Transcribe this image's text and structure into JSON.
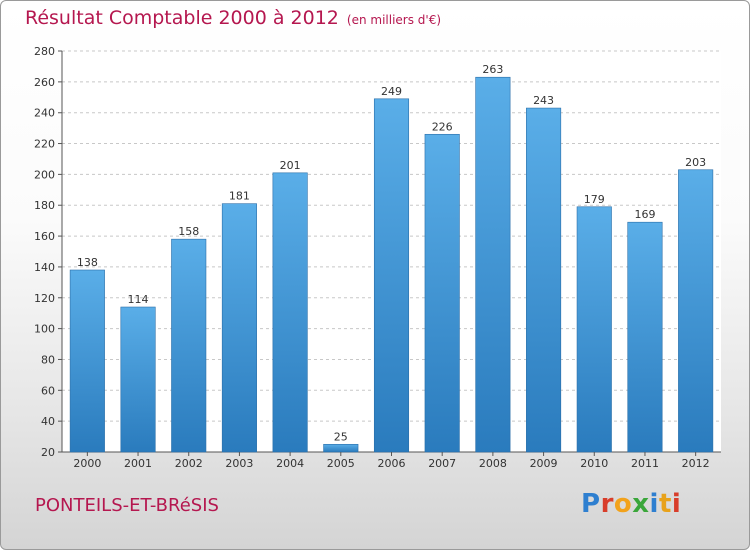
{
  "header": {
    "title": "Résultat Comptable 2000 à 2012",
    "subtitle": "(en milliers d'€)"
  },
  "footer": {
    "commune": "PONTEILS-ET-BRéSIS",
    "logo": "Proxiti",
    "logo_colors": [
      "#2e7fd0",
      "#d83d2a",
      "#f2a21b",
      "#3aa63a",
      "#2e7fd0",
      "#e8a21a",
      "#d83d2a"
    ]
  },
  "chart_data": {
    "type": "bar",
    "title": "Résultat Comptable 2000 à 2012",
    "subtitle": "(en milliers d'€)",
    "xlabel": "",
    "ylabel": "",
    "categories": [
      "2000",
      "2001",
      "2002",
      "2003",
      "2004",
      "2005",
      "2006",
      "2007",
      "2008",
      "2009",
      "2010",
      "2011",
      "2012"
    ],
    "values": [
      138,
      114,
      158,
      181,
      201,
      25,
      249,
      226,
      263,
      243,
      179,
      169,
      203
    ],
    "ylim": [
      20,
      280
    ],
    "yticks": [
      20,
      40,
      60,
      80,
      100,
      120,
      140,
      160,
      180,
      200,
      220,
      240,
      260,
      280
    ],
    "grid": true,
    "bar_color_top": "#5aaee8",
    "bar_color_bottom": "#2a7bbd",
    "title_color": "#b5174f"
  }
}
